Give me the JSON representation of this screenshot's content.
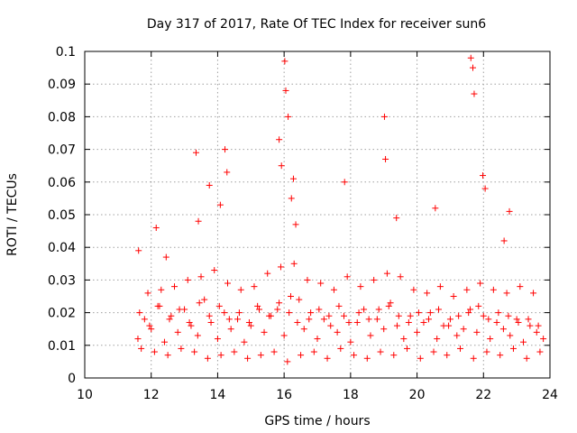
{
  "chart_data": {
    "type": "scatter",
    "title": "Day 317 of 2017, Rate Of TEC Index for receiver sun6",
    "xlabel": "GPS time / hours",
    "ylabel": "ROTI / TECUs",
    "xlim": [
      10,
      24
    ],
    "ylim": [
      0,
      0.1
    ],
    "x_ticks": [
      "10",
      "12",
      "14",
      "16",
      "18",
      "20",
      "22",
      "24"
    ],
    "y_ticks": [
      "0",
      "0.01",
      "0.02",
      "0.03",
      "0.04",
      "0.05",
      "0.06",
      "0.07",
      "0.08",
      "0.09",
      "0.1"
    ],
    "grid": true,
    "marker": "+",
    "color": "#ff0000",
    "series": [
      {
        "x": [
          11.6,
          11.8,
          12.0,
          12.2,
          12.4,
          12.6,
          12.8,
          13.0,
          13.2,
          13.4,
          13.6,
          13.8,
          14.0,
          14.2,
          14.4,
          14.6,
          14.8,
          15.0,
          15.2,
          15.4,
          15.6,
          15.8,
          16.0,
          16.2,
          16.4,
          16.6,
          16.8,
          17.0,
          17.2,
          17.4,
          17.6,
          17.8,
          18.0,
          18.2,
          18.4,
          18.6,
          18.8,
          19.0,
          19.2,
          19.4,
          19.6,
          19.8,
          20.0,
          20.2,
          20.4,
          20.6,
          20.8,
          21.0,
          21.2,
          21.4,
          21.6,
          21.8,
          22.0,
          22.2,
          22.4,
          22.6,
          22.8,
          23.0,
          23.2,
          23.4,
          23.6,
          23.8,
          11.7,
          11.9,
          12.1,
          12.3,
          12.5,
          12.7,
          12.9,
          13.1,
          13.3,
          13.5,
          13.7,
          13.9,
          14.1,
          14.3,
          14.5,
          14.7,
          14.9,
          15.1,
          15.3,
          15.5,
          15.7,
          15.9,
          16.1,
          16.3,
          16.5,
          16.7,
          16.9,
          17.1,
          17.3,
          17.5,
          17.7,
          17.9,
          18.1,
          18.3,
          18.5,
          18.7,
          18.9,
          19.1,
          19.3,
          19.5,
          19.7,
          19.9,
          20.1,
          20.3,
          20.5,
          20.7,
          20.9,
          21.1,
          21.3,
          21.5,
          21.7,
          21.9,
          22.1,
          22.3,
          22.5,
          22.7,
          22.9,
          23.1,
          23.3,
          23.5,
          23.7,
          11.65,
          11.95,
          12.25,
          12.55,
          12.85,
          13.15,
          13.45,
          13.75,
          14.05,
          14.35,
          14.65,
          14.95,
          15.25,
          15.55,
          15.85,
          16.15,
          16.45,
          16.75,
          17.05,
          17.35,
          17.65,
          17.95,
          18.25,
          18.55,
          18.85,
          19.15,
          19.45,
          19.75,
          20.05,
          20.35,
          20.65,
          20.95,
          21.25,
          21.55,
          21.85,
          22.15,
          22.45,
          22.75,
          23.05,
          23.35,
          23.65,
          11.62,
          12.15,
          12.45,
          13.35,
          13.42,
          13.75,
          14.08,
          14.22,
          14.28,
          15.85,
          15.92,
          16.02,
          16.05,
          16.12,
          16.22,
          16.28,
          16.35,
          17.82,
          19.02,
          19.05,
          19.38,
          20.55,
          21.62,
          21.68,
          21.72,
          21.98,
          22.05,
          22.62,
          22.78
        ],
        "y": [
          0.012,
          0.018,
          0.015,
          0.022,
          0.011,
          0.019,
          0.014,
          0.021,
          0.016,
          0.013,
          0.024,
          0.017,
          0.012,
          0.02,
          0.015,
          0.018,
          0.011,
          0.016,
          0.022,
          0.014,
          0.019,
          0.021,
          0.013,
          0.025,
          0.017,
          0.015,
          0.02,
          0.012,
          0.018,
          0.016,
          0.014,
          0.019,
          0.011,
          0.017,
          0.021,
          0.013,
          0.018,
          0.015,
          0.023,
          0.016,
          0.012,
          0.019,
          0.014,
          0.017,
          0.02,
          0.012,
          0.016,
          0.018,
          0.013,
          0.015,
          0.021,
          0.014,
          0.019,
          0.012,
          0.017,
          0.015,
          0.013,
          0.018,
          0.011,
          0.016,
          0.014,
          0.012,
          0.009,
          0.026,
          0.008,
          0.027,
          0.007,
          0.028,
          0.009,
          0.03,
          0.008,
          0.031,
          0.006,
          0.033,
          0.007,
          0.029,
          0.008,
          0.027,
          0.006,
          0.028,
          0.007,
          0.032,
          0.008,
          0.034,
          0.005,
          0.035,
          0.007,
          0.03,
          0.008,
          0.029,
          0.006,
          0.027,
          0.009,
          0.031,
          0.007,
          0.028,
          0.006,
          0.03,
          0.008,
          0.032,
          0.007,
          0.031,
          0.009,
          0.027,
          0.006,
          0.026,
          0.008,
          0.028,
          0.007,
          0.025,
          0.009,
          0.027,
          0.006,
          0.029,
          0.008,
          0.027,
          0.007,
          0.026,
          0.009,
          0.028,
          0.006,
          0.026,
          0.008,
          0.02,
          0.016,
          0.022,
          0.018,
          0.021,
          0.017,
          0.023,
          0.019,
          0.022,
          0.018,
          0.02,
          0.017,
          0.021,
          0.019,
          0.023,
          0.02,
          0.024,
          0.018,
          0.021,
          0.019,
          0.022,
          0.017,
          0.02,
          0.018,
          0.021,
          0.022,
          0.019,
          0.017,
          0.02,
          0.018,
          0.021,
          0.016,
          0.019,
          0.02,
          0.022,
          0.018,
          0.02,
          0.019,
          0.017,
          0.018,
          0.016,
          0.039,
          0.046,
          0.037,
          0.069,
          0.048,
          0.059,
          0.053,
          0.07,
          0.063,
          0.073,
          0.065,
          0.097,
          0.088,
          0.08,
          0.055,
          0.061,
          0.047,
          0.06,
          0.08,
          0.067,
          0.049,
          0.052,
          0.098,
          0.095,
          0.087,
          0.062,
          0.058,
          0.042,
          0.051
        ]
      }
    ]
  }
}
